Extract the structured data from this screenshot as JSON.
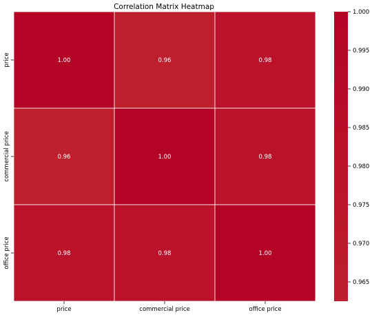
{
  "chart_data": {
    "type": "heatmap",
    "title": "Correlation Matrix Heatmap",
    "row_labels": [
      "price",
      "commercial price",
      "office price"
    ],
    "col_labels": [
      "price",
      "commercial price",
      "office price"
    ],
    "values": [
      [
        1.0,
        0.96,
        0.98
      ],
      [
        0.96,
        1.0,
        0.98
      ],
      [
        0.98,
        0.98,
        1.0
      ]
    ],
    "annotations": [
      [
        "1.00",
        "0.96",
        "0.98"
      ],
      [
        "0.96",
        "1.00",
        "0.98"
      ],
      [
        "0.98",
        "0.98",
        "1.00"
      ]
    ],
    "colorbar": {
      "range": [
        0.9625,
        1.0
      ],
      "ticks": [
        0.965,
        0.97,
        0.975,
        0.98,
        0.985,
        0.99,
        0.995,
        1.0
      ],
      "tick_labels": [
        "0.965",
        "0.970",
        "0.975",
        "0.980",
        "0.985",
        "0.990",
        "0.995",
        "1.000"
      ],
      "color_low": "#bd1f2d",
      "color_high": "#b40426"
    },
    "cell_border_color": "#ffffff",
    "grid": false
  }
}
